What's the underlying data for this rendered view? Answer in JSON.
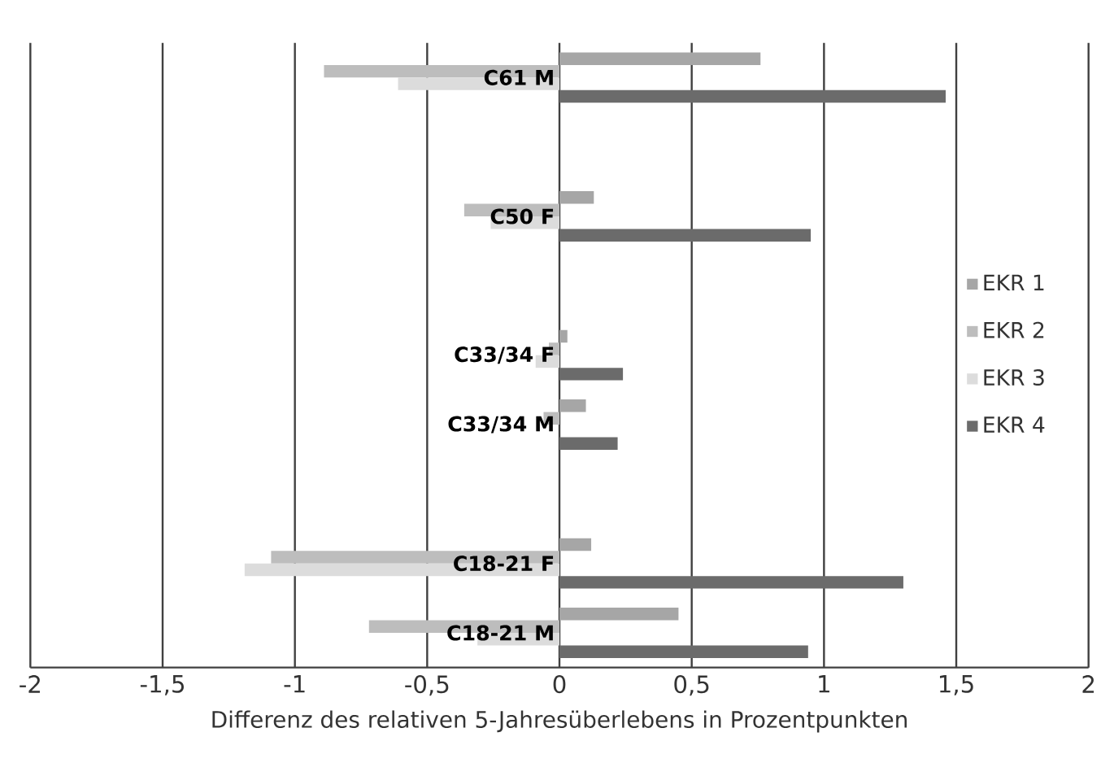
{
  "chart_data": {
    "type": "bar",
    "orientation": "horizontal",
    "xlabel": "Differenz des relativen 5-Jahresüberlebens in Prozentpunkten",
    "categories": [
      "C61 M",
      null,
      "C50 F",
      null,
      "C33/34 F",
      "C33/34 M",
      null,
      "C18-21 F",
      "C18-21 M"
    ],
    "series": [
      {
        "name": "EKR 1",
        "color": "#a6a6a6",
        "values": [
          0.76,
          null,
          0.13,
          null,
          0.03,
          0.1,
          null,
          0.12,
          0.45
        ]
      },
      {
        "name": "EKR 2",
        "color": "#bdbdbd",
        "values": [
          -0.89,
          null,
          -0.36,
          null,
          -0.04,
          -0.06,
          null,
          -1.09,
          -0.72
        ]
      },
      {
        "name": "EKR 3",
        "color": "#dcdcdc",
        "values": [
          -0.61,
          null,
          -0.26,
          null,
          -0.09,
          0,
          null,
          -1.19,
          -0.31
        ]
      },
      {
        "name": "EKR 4",
        "color": "#6b6b6b",
        "values": [
          1.46,
          null,
          0.95,
          null,
          0.24,
          0.22,
          null,
          1.3,
          0.94
        ]
      }
    ],
    "xlim": [
      -2,
      2
    ],
    "xticks": [
      {
        "value": -2,
        "label": "-2"
      },
      {
        "value": -1.5,
        "label": "-1,5"
      },
      {
        "value": -1,
        "label": "-1"
      },
      {
        "value": -0.5,
        "label": "-0,5"
      },
      {
        "value": 0,
        "label": "0"
      },
      {
        "value": 0.5,
        "label": "0,5"
      },
      {
        "value": 1,
        "label": "1"
      },
      {
        "value": 1.5,
        "label": "1,5"
      },
      {
        "value": 2,
        "label": "2"
      }
    ],
    "grid": "x",
    "legend": "right"
  }
}
